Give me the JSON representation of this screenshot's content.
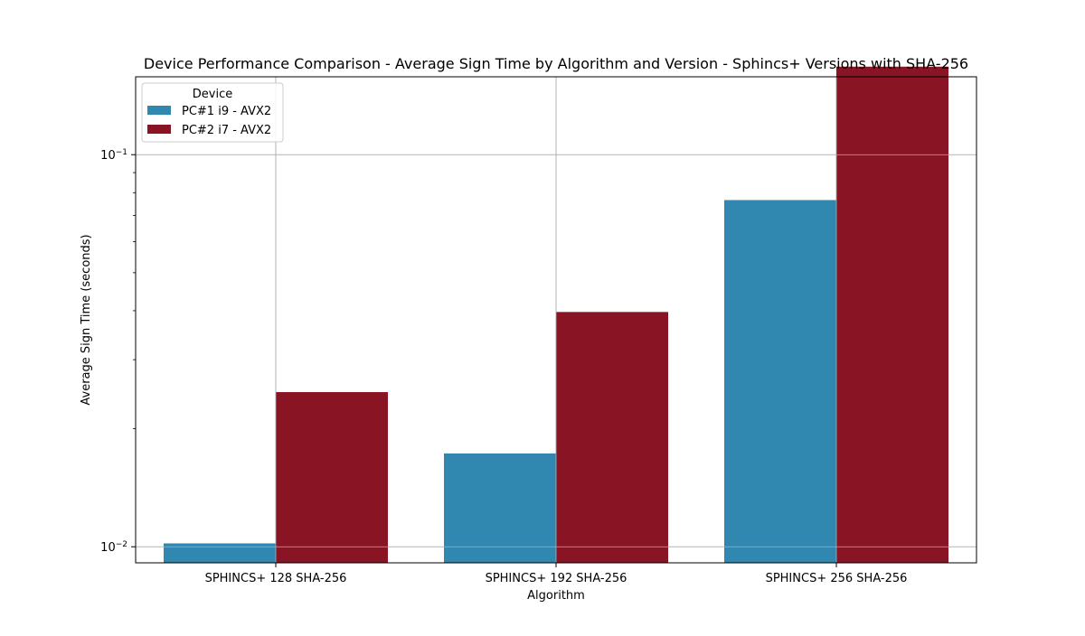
{
  "chart_data": {
    "type": "bar",
    "title": "Device Performance Comparison - Average Sign Time by Algorithm and Version - Sphincs+ Versions with SHA-256",
    "xlabel": "Algorithm",
    "ylabel": "Average Sign Time (seconds)",
    "yscale": "log",
    "ylim": [
      0.0091,
      0.158
    ],
    "yticks": [
      {
        "value": 0.01,
        "base": "10",
        "exponent": "−2"
      },
      {
        "value": 0.1,
        "base": "10",
        "exponent": "−1"
      }
    ],
    "categories": [
      "SPHINCS+ 128 SHA-256",
      "SPHINCS+ 192 SHA-256",
      "SPHINCS+ 256 SHA-256"
    ],
    "series": [
      {
        "name": "PC#1 i9 - AVX2",
        "color": "#3087b0",
        "values": [
          0.0102,
          0.0173,
          0.0766
        ]
      },
      {
        "name": "PC#2 i7 - AVX2",
        "color": "#891423",
        "values": [
          0.0248,
          0.0397,
          0.1677
        ]
      }
    ],
    "legend": {
      "title": "Device",
      "position": "top-left"
    },
    "grid": true,
    "grid_color": "#b0b0b0"
  }
}
